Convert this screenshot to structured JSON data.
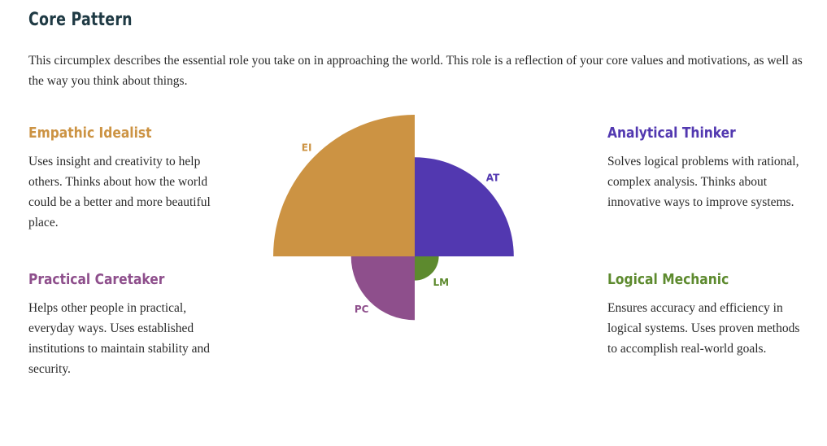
{
  "title": "Core Pattern",
  "intro": "This circumplex describes the essential role you take on in approaching the world. This role is a reflection of your core values and motivations, as well as the way you think about things.",
  "roles": {
    "ei": {
      "name": "Empathic Idealist",
      "description": "Uses insight and creativity to help others. Thinks about how the world could be a better and more beautiful place.",
      "color": "#cc9343"
    },
    "at": {
      "name": "Analytical Thinker",
      "description": "Solves logical problems with rational, complex analysis. Thinks about innovative ways to improve systems.",
      "color": "#5238b0"
    },
    "pc": {
      "name": "Practical Caretaker",
      "description": "Helps other people in practical, everyday ways. Uses established institutions to maintain stability and security.",
      "color": "#8e4f8c"
    },
    "lm": {
      "name": "Logical Mechanic",
      "description": "Ensures accuracy and efficiency in logical systems. Uses proven methods to accomplish real-world goals.",
      "color": "#5d8a2e"
    }
  },
  "chart_data": {
    "type": "polar-area",
    "max": 100,
    "segments": [
      {
        "label": "EI",
        "quadrant": "upper-left",
        "value": 100,
        "color": "#cc9343"
      },
      {
        "label": "AT",
        "quadrant": "upper-right",
        "value": 70,
        "color": "#5238b0"
      },
      {
        "label": "LM",
        "quadrant": "lower-right",
        "value": 17,
        "color": "#5d8a2e"
      },
      {
        "label": "PC",
        "quadrant": "lower-left",
        "value": 45,
        "color": "#8e4f8c"
      }
    ]
  }
}
